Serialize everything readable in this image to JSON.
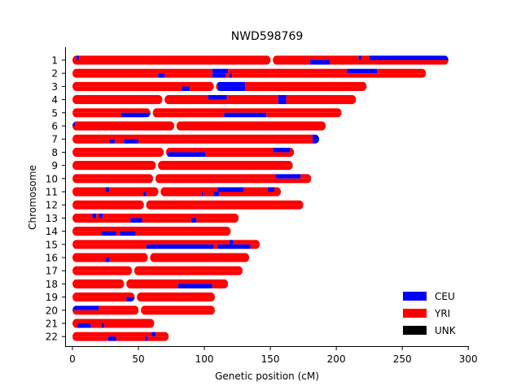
{
  "chart_data": {
    "type": "karyogram",
    "title": "NWD598769",
    "xlabel": "Genetic position (cM)",
    "ylabel": "Chromosome",
    "xlim": [
      0,
      300
    ],
    "xticks": [
      0,
      50,
      100,
      150,
      200,
      250,
      300
    ],
    "colors": {
      "CEU": "#0000ff",
      "YRI": "#ff0000",
      "UNK": "#000000"
    },
    "legend": {
      "placement": "lower-right",
      "entries": [
        {
          "label": "CEU",
          "color": "#0000ff"
        },
        {
          "label": "YRI",
          "color": "#ff0000"
        },
        {
          "label": "UNK",
          "color": "#000000"
        }
      ]
    },
    "chromosomes": [
      {
        "label": "1",
        "length": 285,
        "centromere": 151,
        "top": [
          [
            0,
            3,
            "YRI"
          ],
          [
            3,
            5,
            "CEU"
          ],
          [
            5,
            217,
            "YRI"
          ],
          [
            217,
            219,
            "CEU"
          ],
          [
            219,
            225,
            "YRI"
          ],
          [
            225,
            285,
            "CEU"
          ]
        ],
        "bottom": [
          [
            0,
            180,
            "YRI"
          ],
          [
            180,
            195,
            "CEU"
          ],
          [
            195,
            285,
            "YRI"
          ]
        ]
      },
      {
        "label": "2",
        "length": 268,
        "centromere": 0,
        "top": [
          [
            0,
            106,
            "YRI"
          ],
          [
            106,
            118,
            "CEU"
          ],
          [
            118,
            208,
            "YRI"
          ],
          [
            208,
            231,
            "CEU"
          ],
          [
            231,
            268,
            "YRI"
          ]
        ],
        "bottom": [
          [
            0,
            65,
            "YRI"
          ],
          [
            65,
            70,
            "CEU"
          ],
          [
            70,
            106,
            "YRI"
          ],
          [
            106,
            116,
            "CEU"
          ],
          [
            116,
            119,
            "YRI"
          ],
          [
            119,
            121,
            "CEU"
          ],
          [
            121,
            268,
            "YRI"
          ]
        ]
      },
      {
        "label": "3",
        "length": 223,
        "centromere": 108,
        "top": [
          [
            0,
            110,
            "YRI"
          ],
          [
            110,
            131,
            "CEU"
          ],
          [
            131,
            223,
            "YRI"
          ]
        ],
        "bottom": [
          [
            0,
            83,
            "YRI"
          ],
          [
            83,
            89,
            "CEU"
          ],
          [
            89,
            110,
            "YRI"
          ],
          [
            110,
            131,
            "CEU"
          ],
          [
            131,
            223,
            "YRI"
          ]
        ]
      },
      {
        "label": "4",
        "length": 215,
        "centromere": 69,
        "top": [
          [
            0,
            103,
            "YRI"
          ],
          [
            103,
            117,
            "CEU"
          ],
          [
            117,
            156,
            "YRI"
          ],
          [
            156,
            162,
            "CEU"
          ],
          [
            162,
            215,
            "YRI"
          ]
        ],
        "bottom": [
          [
            0,
            156,
            "YRI"
          ],
          [
            156,
            162,
            "CEU"
          ],
          [
            162,
            215,
            "YRI"
          ]
        ]
      },
      {
        "label": "5",
        "length": 204,
        "centromere": 60,
        "top": [
          [
            0,
            204,
            "YRI"
          ]
        ],
        "bottom": [
          [
            0,
            37,
            "YRI"
          ],
          [
            37,
            60,
            "CEU"
          ],
          [
            60,
            115,
            "YRI"
          ],
          [
            115,
            147,
            "CEU"
          ],
          [
            147,
            204,
            "YRI"
          ]
        ]
      },
      {
        "label": "6",
        "length": 192,
        "centromere": 78,
        "top": [
          [
            0,
            2,
            "CEU"
          ],
          [
            2,
            192,
            "YRI"
          ]
        ],
        "bottom": [
          [
            0,
            192,
            "YRI"
          ]
        ]
      },
      {
        "label": "7",
        "length": 187,
        "centromere": 0,
        "top": [
          [
            0,
            182,
            "YRI"
          ],
          [
            182,
            187,
            "CEU"
          ]
        ],
        "bottom": [
          [
            0,
            28,
            "YRI"
          ],
          [
            28,
            32,
            "CEU"
          ],
          [
            32,
            39,
            "YRI"
          ],
          [
            39,
            50,
            "CEU"
          ],
          [
            50,
            182,
            "YRI"
          ],
          [
            182,
            187,
            "CEU"
          ]
        ]
      },
      {
        "label": "8",
        "length": 168,
        "centromere": 70,
        "top": [
          [
            0,
            152,
            "YRI"
          ],
          [
            152,
            165,
            "CEU"
          ],
          [
            165,
            168,
            "YRI"
          ]
        ],
        "bottom": [
          [
            0,
            72,
            "YRI"
          ],
          [
            72,
            101,
            "CEU"
          ],
          [
            101,
            168,
            "YRI"
          ]
        ]
      },
      {
        "label": "9",
        "length": 167,
        "centromere": 64,
        "top": [
          [
            0,
            167,
            "YRI"
          ]
        ],
        "bottom": [
          [
            0,
            167,
            "YRI"
          ]
        ]
      },
      {
        "label": "10",
        "length": 181,
        "centromere": 62,
        "top": [
          [
            0,
            154,
            "YRI"
          ],
          [
            154,
            173,
            "CEU"
          ],
          [
            173,
            181,
            "YRI"
          ]
        ],
        "bottom": [
          [
            0,
            181,
            "YRI"
          ]
        ]
      },
      {
        "label": "11",
        "length": 158,
        "centromere": 66,
        "top": [
          [
            0,
            25,
            "YRI"
          ],
          [
            25,
            28,
            "CEU"
          ],
          [
            28,
            110,
            "YRI"
          ],
          [
            110,
            130,
            "CEU"
          ],
          [
            130,
            148,
            "YRI"
          ],
          [
            148,
            153,
            "CEU"
          ],
          [
            153,
            158,
            "YRI"
          ]
        ],
        "bottom": [
          [
            0,
            54,
            "YRI"
          ],
          [
            54,
            56,
            "CEU"
          ],
          [
            56,
            98,
            "YRI"
          ],
          [
            98,
            99,
            "CEU"
          ],
          [
            99,
            107,
            "YRI"
          ],
          [
            107,
            111,
            "CEU"
          ],
          [
            111,
            158,
            "YRI"
          ]
        ]
      },
      {
        "label": "12",
        "length": 175,
        "centromere": 55,
        "top": [
          [
            0,
            175,
            "YRI"
          ]
        ],
        "bottom": [
          [
            0,
            175,
            "YRI"
          ]
        ]
      },
      {
        "label": "13",
        "length": 126,
        "centromere": 0,
        "top": [
          [
            0,
            15,
            "YRI"
          ],
          [
            15,
            18,
            "CEU"
          ],
          [
            18,
            20,
            "YRI"
          ],
          [
            20,
            23,
            "CEU"
          ],
          [
            23,
            126,
            "YRI"
          ]
        ],
        "bottom": [
          [
            0,
            44,
            "YRI"
          ],
          [
            44,
            53,
            "CEU"
          ],
          [
            53,
            90,
            "YRI"
          ],
          [
            90,
            94,
            "CEU"
          ],
          [
            94,
            126,
            "YRI"
          ]
        ]
      },
      {
        "label": "14",
        "length": 120,
        "centromere": 0,
        "top": [
          [
            0,
            120,
            "YRI"
          ]
        ],
        "bottom": [
          [
            0,
            22,
            "YRI"
          ],
          [
            22,
            33,
            "CEU"
          ],
          [
            33,
            36,
            "YRI"
          ],
          [
            36,
            48,
            "CEU"
          ],
          [
            48,
            120,
            "YRI"
          ]
        ]
      },
      {
        "label": "15",
        "length": 142,
        "centromere": 0,
        "top": [
          [
            0,
            119,
            "YRI"
          ],
          [
            119,
            122,
            "CEU"
          ],
          [
            122,
            142,
            "YRI"
          ]
        ],
        "bottom": [
          [
            0,
            56,
            "YRI"
          ],
          [
            56,
            107,
            "CEU"
          ],
          [
            107,
            110,
            "YRI"
          ],
          [
            110,
            135,
            "CEU"
          ],
          [
            135,
            142,
            "YRI"
          ]
        ]
      },
      {
        "label": "16",
        "length": 134,
        "centromere": 58,
        "top": [
          [
            0,
            134,
            "YRI"
          ]
        ],
        "bottom": [
          [
            0,
            25,
            "YRI"
          ],
          [
            25,
            28,
            "CEU"
          ],
          [
            28,
            134,
            "YRI"
          ]
        ]
      },
      {
        "label": "17",
        "length": 129,
        "centromere": 46,
        "top": [
          [
            0,
            129,
            "YRI"
          ]
        ],
        "bottom": [
          [
            0,
            129,
            "YRI"
          ]
        ]
      },
      {
        "label": "18",
        "length": 118,
        "centromere": 40,
        "top": [
          [
            0,
            118,
            "YRI"
          ]
        ],
        "bottom": [
          [
            0,
            80,
            "YRI"
          ],
          [
            80,
            106,
            "CEU"
          ],
          [
            106,
            118,
            "YRI"
          ]
        ]
      },
      {
        "label": "19",
        "length": 108,
        "centromere": 48,
        "top": [
          [
            0,
            108,
            "YRI"
          ]
        ],
        "bottom": [
          [
            0,
            41,
            "YRI"
          ],
          [
            41,
            47,
            "CEU"
          ],
          [
            47,
            108,
            "YRI"
          ]
        ]
      },
      {
        "label": "20",
        "length": 108,
        "centromere": 51,
        "top": [
          [
            0,
            20,
            "CEU"
          ],
          [
            20,
            108,
            "YRI"
          ]
        ],
        "bottom": [
          [
            0,
            108,
            "YRI"
          ]
        ]
      },
      {
        "label": "21",
        "length": 62,
        "centromere": 0,
        "top": [
          [
            0,
            62,
            "YRI"
          ]
        ],
        "bottom": [
          [
            0,
            4,
            "YRI"
          ],
          [
            4,
            14,
            "CEU"
          ],
          [
            14,
            22,
            "YRI"
          ],
          [
            22,
            24,
            "CEU"
          ],
          [
            24,
            62,
            "YRI"
          ]
        ]
      },
      {
        "label": "22",
        "length": 73,
        "centromere": 0,
        "top": [
          [
            0,
            60,
            "YRI"
          ],
          [
            60,
            63,
            "CEU"
          ],
          [
            63,
            73,
            "YRI"
          ]
        ],
        "bottom": [
          [
            0,
            27,
            "YRI"
          ],
          [
            27,
            33,
            "CEU"
          ],
          [
            33,
            55,
            "YRI"
          ],
          [
            55,
            57,
            "CEU"
          ],
          [
            57,
            73,
            "YRI"
          ]
        ]
      }
    ]
  }
}
